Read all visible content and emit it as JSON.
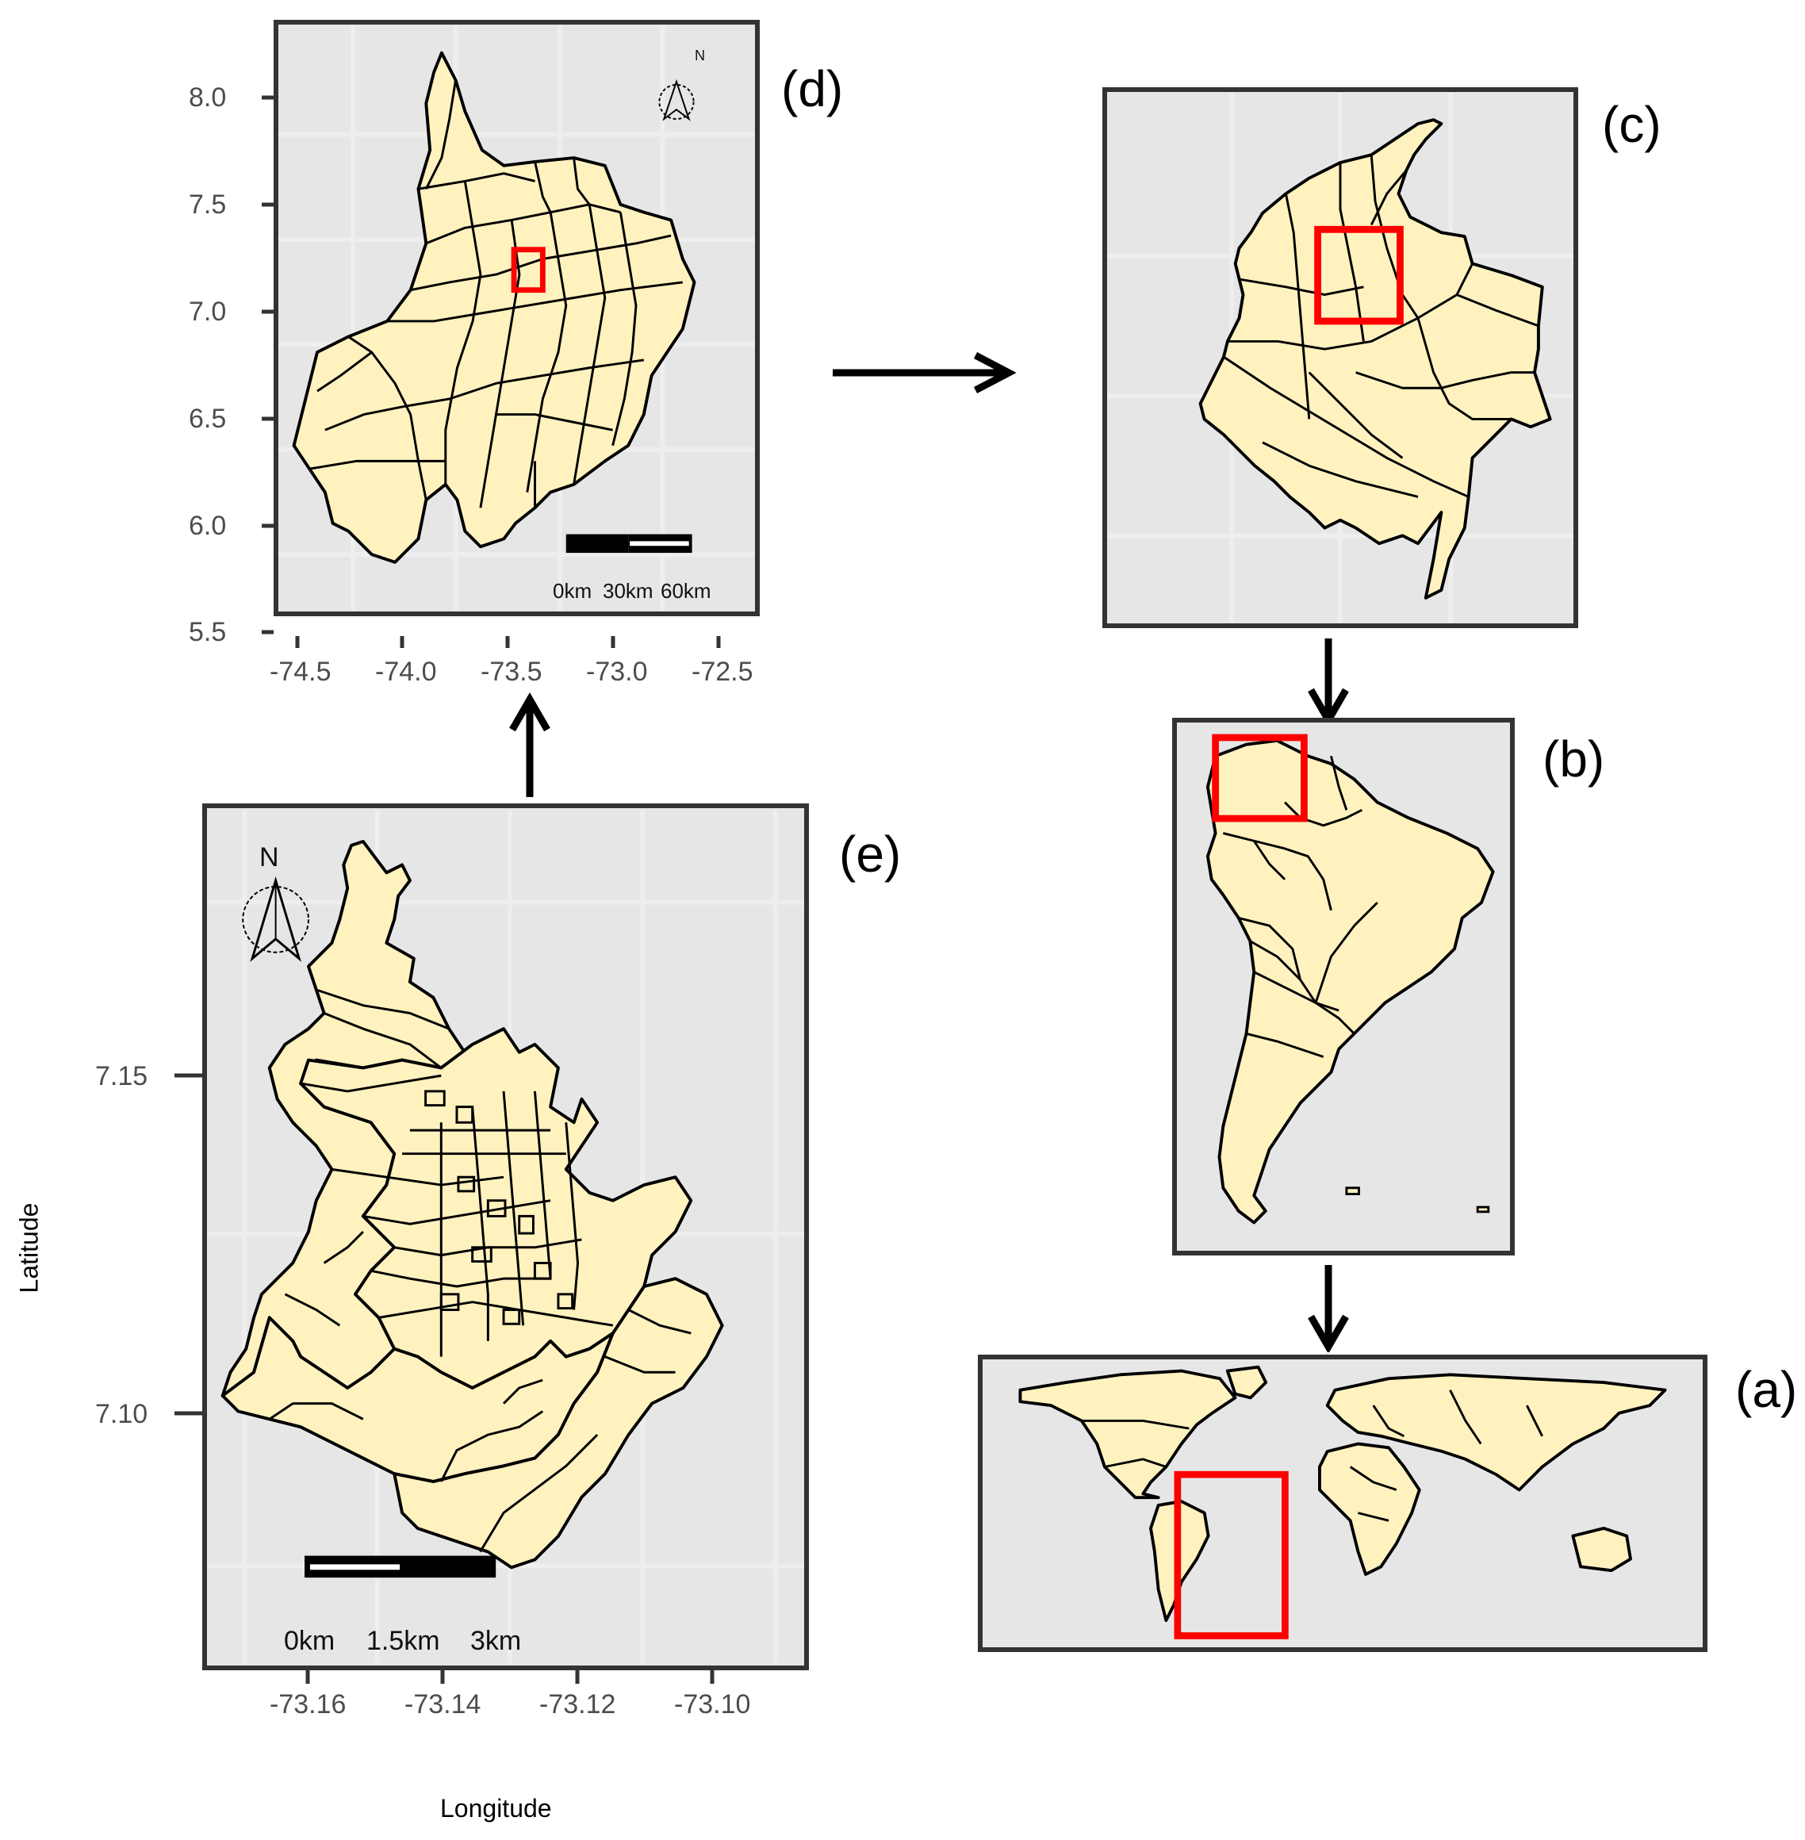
{
  "panels": {
    "d": {
      "label": "(d)",
      "y_ticks": [
        "8.0",
        "7.5",
        "7.0",
        "6.5",
        "6.0",
        "5.5"
      ],
      "x_ticks": [
        "-74.5",
        "-74.0",
        "-73.5",
        "-73.0",
        "-72.5"
      ],
      "scale": [
        "0km",
        "30km",
        "60km"
      ],
      "north": "N"
    },
    "c": {
      "label": "(c)"
    },
    "b": {
      "label": "(b)"
    },
    "a": {
      "label": "(a)"
    },
    "e": {
      "label": "(e)",
      "y_ticks": [
        "7.15",
        "7.10"
      ],
      "x_ticks": [
        "-73.16",
        "-73.14",
        "-73.12",
        "-73.10"
      ],
      "scale": [
        "0km",
        "1.5km",
        "3km"
      ],
      "north": "N"
    }
  },
  "axes": {
    "ylabel": "Latitude",
    "xlabel": "Longitude"
  },
  "colors": {
    "land": "#fff2bf",
    "highlight": "#ff0000",
    "frame": "#333333",
    "grid": "#e6e6e6"
  },
  "icons": [
    "north-arrow-icon",
    "arrow-right-icon",
    "arrow-down-icon",
    "arrow-up-icon"
  ]
}
